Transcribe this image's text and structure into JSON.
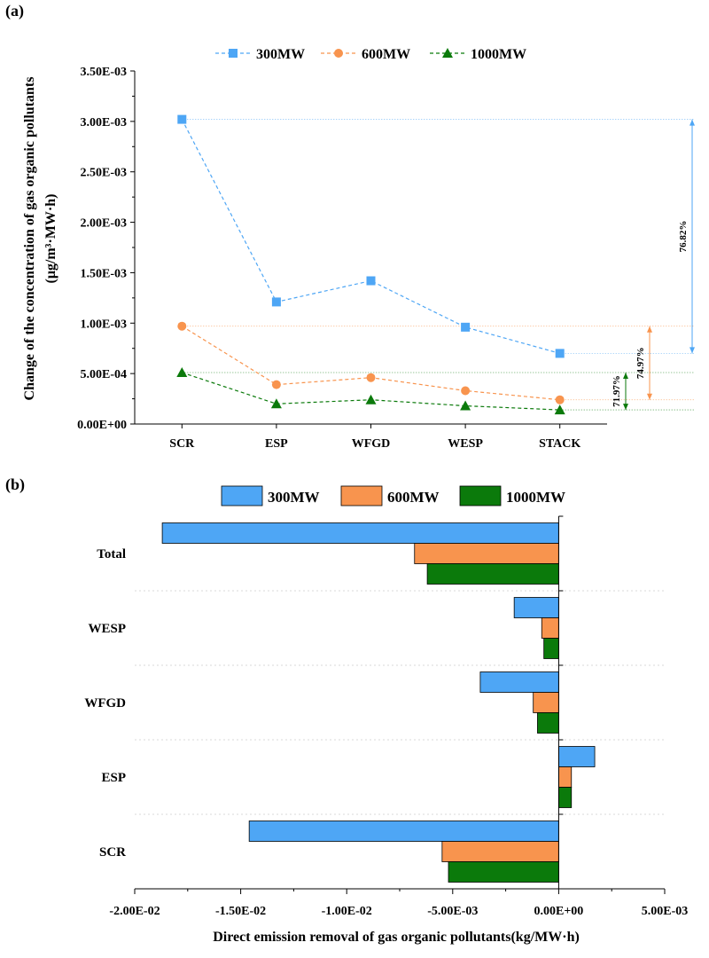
{
  "panel_a_label": "(a)",
  "panel_b_label": "(b)",
  "colors": {
    "300MW": "#4ea6f5",
    "600MW": "#f8944e",
    "1000MW": "#0b7a0b"
  },
  "chart_data": [
    {
      "type": "line",
      "title": "",
      "xlabel": "",
      "ylabel_line1": "Change of the concentration of gas organic pollutants",
      "ylabel_line2": "(μg/m³·MW·h)",
      "categories": [
        "SCR",
        "ESP",
        "WFGD",
        "WESP",
        "STACK"
      ],
      "ylim": [
        0,
        0.0035
      ],
      "yticks": [
        "0.00E+00",
        "5.00E-04",
        "1.00E-03",
        "1.50E-03",
        "2.00E-03",
        "2.50E-03",
        "3.00E-03",
        "3.50E-03"
      ],
      "legend_position": "top",
      "series": [
        {
          "name": "300MW",
          "marker": "square",
          "values": [
            0.00302,
            0.00121,
            0.00142,
            0.00096,
            0.0007
          ]
        },
        {
          "name": "600MW",
          "marker": "circle",
          "values": [
            0.00097,
            0.00039,
            0.00046,
            0.00033,
            0.00024
          ]
        },
        {
          "name": "1000MW",
          "marker": "triangle",
          "values": [
            0.00051,
            0.0002,
            0.00024,
            0.00018,
            0.00014
          ]
        }
      ],
      "annotations": [
        {
          "text": "76.82%",
          "series": "300MW"
        },
        {
          "text": "74.97%",
          "series": "600MW"
        },
        {
          "text": "71.97%",
          "series": "1000MW"
        }
      ]
    },
    {
      "type": "bar",
      "orientation": "horizontal",
      "title": "",
      "xlabel": "Direct emission removal of gas organic pollutants(kg/MW·h)",
      "ylabel": "",
      "categories": [
        "Total",
        "WESP",
        "WFGD",
        "ESP",
        "SCR"
      ],
      "xlim": [
        -0.02,
        0.005
      ],
      "xticks": [
        "-2.00E-02",
        "-1.50E-02",
        "-1.00E-02",
        "-5.00E-03",
        "0.00E+00",
        "5.00E-03"
      ],
      "legend_position": "top",
      "series": [
        {
          "name": "300MW",
          "values": [
            -0.0187,
            -0.0021,
            -0.0037,
            0.0017,
            -0.0146
          ]
        },
        {
          "name": "600MW",
          "values": [
            -0.0068,
            -0.0008,
            -0.0012,
            0.0006,
            -0.0055
          ]
        },
        {
          "name": "1000MW",
          "values": [
            -0.0062,
            -0.0007,
            -0.001,
            0.0006,
            -0.0052
          ]
        }
      ]
    }
  ]
}
